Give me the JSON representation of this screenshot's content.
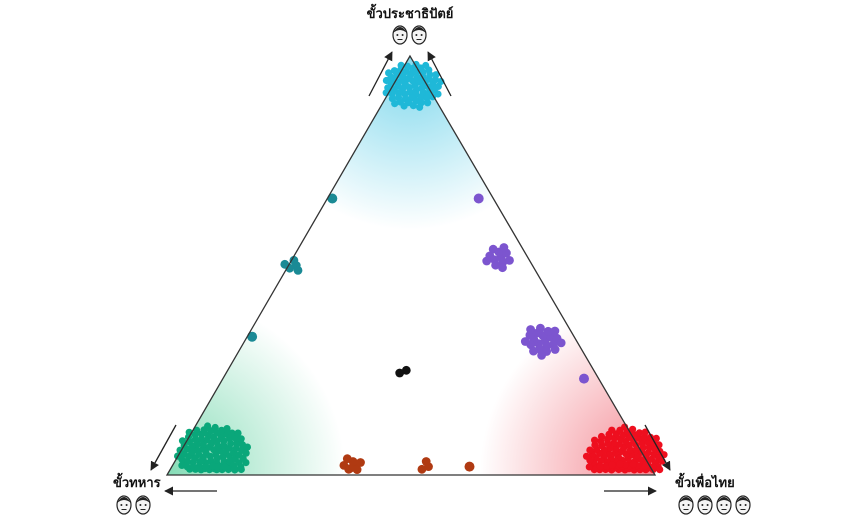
{
  "chart_data": {
    "type": "scatter",
    "layout": "ternary",
    "title": "",
    "poles": [
      {
        "key": "top",
        "label": "ขั้วประชาธิปัตย์",
        "color": "#6fd3ea",
        "faces": 2
      },
      {
        "key": "left",
        "label": "ขั้วทหาร",
        "color": "#7ad9b0",
        "faces": 2
      },
      {
        "key": "right",
        "label": "ขั้วเพื่อไทย",
        "color": "#f27a85",
        "faces": 4
      }
    ],
    "series": [
      {
        "color": "#1fb8d8",
        "points": [
          {
            "top": 0.93,
            "left": 0.03,
            "right": 0.04,
            "count": 70
          }
        ]
      },
      {
        "color": "#0aa77a",
        "points": [
          {
            "top": 0.05,
            "left": 0.88,
            "right": 0.07,
            "count": 110
          }
        ]
      },
      {
        "color": "#ee0f1f",
        "points": [
          {
            "top": 0.04,
            "left": 0.04,
            "right": 0.92,
            "count": 130
          }
        ]
      },
      {
        "color": "#7c55cf",
        "points": [
          {
            "top": 0.66,
            "left": 0.03,
            "right": 0.31,
            "count": 1
          },
          {
            "top": 0.52,
            "left": 0.06,
            "right": 0.42,
            "count": 12
          },
          {
            "top": 0.32,
            "left": 0.07,
            "right": 0.61,
            "count": 22
          },
          {
            "top": 0.23,
            "left": 0.03,
            "right": 0.74,
            "count": 1
          }
        ]
      },
      {
        "color": "#1a8a95",
        "points": [
          {
            "top": 0.66,
            "left": 0.33,
            "right": 0.01,
            "count": 1
          },
          {
            "top": 0.5,
            "left": 0.49,
            "right": 0.01,
            "count": 5
          },
          {
            "top": 0.33,
            "left": 0.66,
            "right": 0.01,
            "count": 1
          }
        ]
      },
      {
        "color": "#111111",
        "points": [
          {
            "top": 0.25,
            "left": 0.39,
            "right": 0.36,
            "count": 2
          }
        ]
      },
      {
        "color": "#b03a12",
        "points": [
          {
            "top": 0.02,
            "left": 0.61,
            "right": 0.37,
            "count": 8
          },
          {
            "top": 0.02,
            "left": 0.46,
            "right": 0.52,
            "count": 3
          },
          {
            "top": 0.02,
            "left": 0.37,
            "right": 0.61,
            "count": 1
          }
        ]
      }
    ]
  }
}
